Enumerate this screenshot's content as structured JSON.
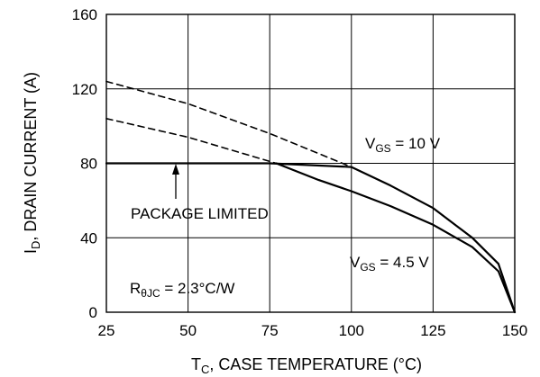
{
  "chart_data": {
    "type": "line",
    "xlabel": {
      "main": "T",
      "sub": "C",
      "rest": ", CASE TEMPERATURE (°C)"
    },
    "ylabel": {
      "main": "I",
      "sub": "D",
      "rest": ", DRAIN CURRENT (A)"
    },
    "xlim": [
      25,
      150
    ],
    "ylim": [
      0,
      160
    ],
    "x_ticks": [
      "25",
      "50",
      "75",
      "100",
      "125",
      "150"
    ],
    "y_ticks": [
      "0",
      "40",
      "80",
      "120",
      "160"
    ],
    "grid": true,
    "series": [
      {
        "style": "solid",
        "x": [
          25,
          50,
          75,
          100,
          112,
          125,
          137,
          145,
          150
        ],
        "y": [
          80,
          80,
          80,
          78,
          68,
          56,
          40,
          26,
          0
        ]
      },
      {
        "style": "solid",
        "x": [
          77,
          90,
          100,
          112,
          125,
          137,
          145,
          150
        ],
        "y": [
          80,
          71,
          65,
          57,
          47,
          35,
          22,
          0
        ]
      },
      {
        "style": "dashed",
        "x": [
          25,
          50,
          75,
          100
        ],
        "y": [
          124,
          112,
          96,
          78
        ]
      },
      {
        "style": "dashed",
        "x": [
          25,
          50,
          77
        ],
        "y": [
          104,
          94,
          80
        ]
      }
    ],
    "annotations": {
      "vgs10": {
        "main": "V",
        "sub": "GS",
        "rest": " = 10 V"
      },
      "vgs45": {
        "main": "V",
        "sub": "GS",
        "rest": " = 4.5 V"
      },
      "package": "PACKAGE LIMITED",
      "rth": {
        "main": "R",
        "sub": "θJC",
        "rest": " = 2.3°C/W"
      }
    }
  }
}
